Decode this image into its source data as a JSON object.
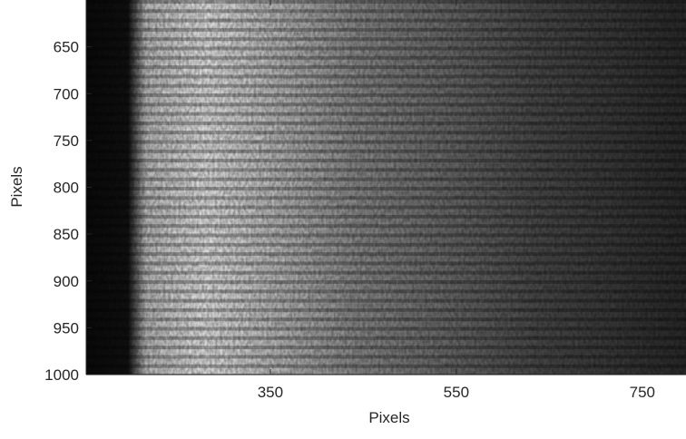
{
  "chart_data": {
    "type": "image",
    "xlabel": "Pixels",
    "ylabel": "Pixels",
    "xlim": [
      152,
      797
    ],
    "xticks": [
      350,
      550,
      750
    ],
    "ylim": [
      600,
      1000
    ],
    "yticks": [
      650,
      700,
      750,
      800,
      850,
      900,
      950,
      1000
    ],
    "y_reversed": true,
    "colormap": "gray"
  }
}
